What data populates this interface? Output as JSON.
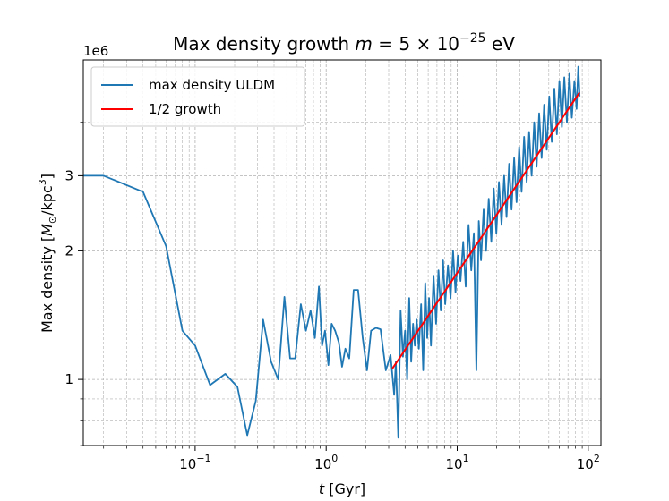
{
  "chart_data": {
    "type": "line",
    "title_prefix": "Max density growth ",
    "title_math": "m",
    "title_eq": " = 5 × 10",
    "title_exp": "−25",
    "title_suffix": " eV",
    "xlabel_var": "t",
    "xlabel_unit": " [Gyr]",
    "ylabel_prefix": "Max density [",
    "ylabel_msun": "M",
    "ylabel_sun_sub": "⊙",
    "ylabel_kpc": "/kpc",
    "ylabel_exp": "3",
    "ylabel_suffix": "]",
    "offset_text": "1e6",
    "xscale": "log",
    "yscale": "log",
    "xlim": [
      0.014,
      125
    ],
    "ylim": [
      0.7,
      5.6
    ],
    "x_ticks": [
      {
        "value": 0.1,
        "base": "10",
        "exp": "−1"
      },
      {
        "value": 1,
        "base": "10",
        "exp": "0"
      },
      {
        "value": 10,
        "base": "10",
        "exp": "1"
      },
      {
        "value": 100,
        "base": "10",
        "exp": "2"
      }
    ],
    "y_ticks": [
      {
        "value": 1,
        "label": "1"
      },
      {
        "value": 2,
        "label": "2"
      },
      {
        "value": 3,
        "label": "3"
      }
    ],
    "grid": true,
    "legend_position": "upper-left",
    "series": [
      {
        "name": "max density ULDM",
        "color": "#1f77b4",
        "x": [
          0.014,
          0.02,
          0.04,
          0.06,
          0.08,
          0.1,
          0.13,
          0.17,
          0.21,
          0.25,
          0.29,
          0.33,
          0.38,
          0.43,
          0.48,
          0.53,
          0.58,
          0.64,
          0.7,
          0.76,
          0.82,
          0.88,
          0.93,
          0.98,
          1.04,
          1.1,
          1.17,
          1.25,
          1.32,
          1.4,
          1.5,
          1.62,
          1.75,
          1.9,
          2.05,
          2.2,
          2.4,
          2.6,
          2.85,
          3.1,
          3.3,
          3.4,
          3.55,
          3.7,
          3.85,
          4.0,
          4.15,
          4.3,
          4.45,
          4.6,
          4.75,
          4.9,
          5.1,
          5.3,
          5.5,
          5.7,
          5.9,
          6.1,
          6.3,
          6.6,
          6.9,
          7.2,
          7.5,
          7.8,
          8.1,
          8.5,
          8.9,
          9.3,
          9.7,
          10.1,
          10.6,
          11.1,
          11.6,
          12.2,
          12.8,
          13.4,
          14.0,
          14.6,
          15.2,
          15.9,
          16.6,
          17.4,
          18.2,
          19.0,
          19.9,
          20.8,
          21.8,
          22.8,
          23.8,
          24.9,
          26.0,
          27.2,
          28.4,
          29.7,
          31.0,
          32.4,
          33.9,
          35.4,
          37.0,
          38.7,
          40.4,
          42.2,
          44.1,
          46.1,
          48.2,
          50.4,
          52.7,
          55.1,
          57.6,
          60.2,
          62.9,
          65.7,
          68.7,
          71.8,
          75.0,
          78.4,
          81.5,
          84.0,
          86.0
        ],
        "y": [
          3.0,
          3.0,
          2.75,
          2.05,
          1.3,
          1.2,
          0.97,
          1.03,
          0.96,
          0.74,
          0.89,
          1.38,
          1.1,
          1.0,
          1.56,
          1.12,
          1.12,
          1.5,
          1.3,
          1.45,
          1.25,
          1.65,
          1.2,
          1.3,
          1.08,
          1.35,
          1.3,
          1.22,
          1.07,
          1.18,
          1.12,
          1.62,
          1.62,
          1.25,
          1.05,
          1.3,
          1.32,
          1.31,
          1.05,
          1.14,
          0.92,
          1.1,
          0.73,
          1.45,
          1.13,
          1.3,
          1.0,
          1.55,
          1.1,
          1.35,
          1.2,
          1.38,
          1.18,
          1.5,
          1.05,
          1.68,
          1.25,
          1.55,
          1.2,
          1.75,
          1.35,
          1.8,
          1.45,
          1.9,
          1.5,
          1.85,
          1.55,
          2.0,
          1.6,
          1.95,
          1.7,
          2.1,
          1.65,
          2.3,
          1.8,
          2.2,
          1.05,
          2.35,
          1.9,
          2.5,
          2.0,
          2.65,
          2.1,
          2.8,
          2.2,
          2.9,
          2.3,
          3.0,
          2.4,
          3.2,
          2.5,
          3.3,
          2.6,
          3.5,
          2.75,
          3.7,
          2.9,
          3.8,
          3.0,
          4.0,
          3.15,
          4.2,
          3.3,
          4.4,
          3.45,
          4.6,
          3.6,
          4.8,
          3.75,
          5.0,
          3.9,
          5.1,
          4.0,
          5.2,
          4.1,
          5.0,
          4.3,
          5.4,
          4.6
        ]
      },
      {
        "name": "1/2 growth",
        "color": "#ff0000",
        "x": [
          3.2,
          86.0
        ],
        "y": [
          1.06,
          4.7
        ]
      }
    ]
  }
}
